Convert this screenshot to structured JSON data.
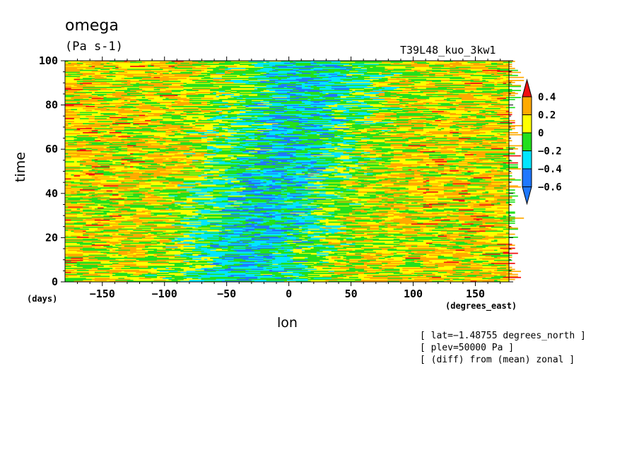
{
  "chart_data": {
    "type": "heatmap",
    "title": "omega",
    "units": "(Pa s-1)",
    "run_name": "T39L48_kuo_3kw1",
    "xlabel": "lon",
    "ylabel": "time",
    "x_unit_label": "(degrees_east)",
    "y_unit_label": "(days)",
    "xlim": [
      -180,
      177
    ],
    "ylim": [
      0,
      100
    ],
    "x_ticks": [
      -150,
      -100,
      -50,
      0,
      50,
      100,
      150
    ],
    "y_ticks": [
      0,
      20,
      40,
      60,
      80,
      100
    ],
    "x_tick_labels": [
      "−150",
      "−100",
      "−50",
      "0",
      "50",
      "100",
      "150"
    ],
    "y_tick_labels": [
      "0",
      "20",
      "40",
      "60",
      "80",
      "100"
    ],
    "colorbar": {
      "levels": [
        -0.6,
        -0.4,
        -0.2,
        0,
        0.2,
        0.4
      ],
      "labels": [
        "0.4",
        "0.2",
        "0",
        "−0.2",
        "−0.4",
        "−0.6"
      ],
      "colors": [
        "#1e78ff",
        "#00e6ff",
        "#22e01c",
        "#ffff00",
        "#ffaa00",
        "#f01010"
      ],
      "extend": "both"
    },
    "pattern": {
      "description_lon_centers": [
        -40,
        -10,
        20
      ],
      "field_summary": "negative omega (ascent) band near lon -50 to 50 drifting eastward with time; positive elsewhere"
    },
    "grid": false
  },
  "annotations": {
    "line1": "[ lat=−1.48755 degrees_north ]",
    "line2": "[ plev=50000 Pa ]",
    "line3": "[ (diff) from (mean) zonal ]"
  },
  "colors": {
    "frame": "#000000",
    "background": "#ffffff"
  }
}
